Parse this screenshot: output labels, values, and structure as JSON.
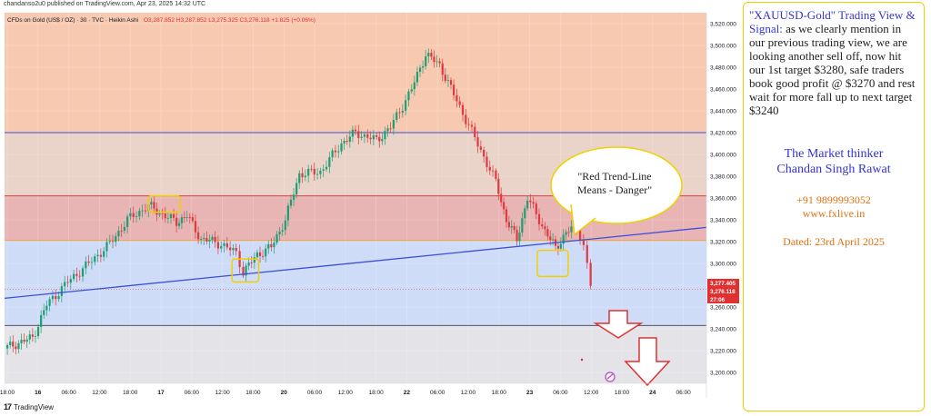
{
  "published_line": "chandanso2u0 published on TradingView.com, Apr 23, 2025 14:32 UTC",
  "footer_brand": "TradingView",
  "footer_logo": "tradingview-logo-icon",
  "chart_data": {
    "type": "candlestick",
    "legend": {
      "symbol": "CFDs on Gold (US$ / OZ) · 30 · TVC · Heikin Ashi",
      "ohlc": "O3,287.852  H3,287.852  L3,275.325  C3,276.118  +1.825 (+0.06%)"
    },
    "y_axis": {
      "ylim": [
        3190,
        3530
      ],
      "ticks": [
        3200,
        3220,
        3240,
        3260,
        3280,
        3300,
        3320,
        3340,
        3360,
        3380,
        3400,
        3420,
        3440,
        3460,
        3480,
        3500,
        3520
      ],
      "tick_labels": [
        "3,200.000",
        "3,220.000",
        "3,240.000",
        "3,260.000",
        "3,280.000",
        "3,300.000",
        "3,320.000",
        "3,340.000",
        "3,360.000",
        "3,380.000",
        "3,400.000",
        "3,420.000",
        "3,440.000",
        "3,460.000",
        "3,480.000",
        "3,500.000",
        "3,520.000"
      ]
    },
    "x_axis": {
      "labels": [
        "18:00",
        "16",
        "06:00",
        "12:00",
        "18:00",
        "17",
        "06:00",
        "12:00",
        "18:00",
        "20",
        "06:00",
        "12:00",
        "18:00",
        "22",
        "06:00",
        "12:00",
        "18:00",
        "23",
        "06:00",
        "12:00",
        "18:00",
        "24",
        "06:00"
      ],
      "bold_labels": [
        "16",
        "17",
        "20",
        "22",
        "23",
        "24"
      ]
    },
    "zones": [
      {
        "name": "top-zone",
        "from": 3420,
        "to": 3530,
        "color": "#f7c9b0"
      },
      {
        "name": "upper-mid-zone",
        "from": 3362,
        "to": 3420,
        "color": "#ead3c8"
      },
      {
        "name": "resistance-zone",
        "from": 3321,
        "to": 3362,
        "color": "#e8b4b4"
      },
      {
        "name": "support-zone",
        "from": 3243,
        "to": 3321,
        "color": "#cfdcf7"
      },
      {
        "name": "bottom-zone",
        "from": 3190,
        "to": 3243,
        "color": "#e4e4e8"
      }
    ],
    "hlines": [
      {
        "name": "blue-line-3420",
        "y": 3420,
        "color": "#3b4fd8"
      },
      {
        "name": "red-line-3362",
        "y": 3362,
        "color": "#e04040"
      },
      {
        "name": "orange-line-3321",
        "y": 3321,
        "color": "#f0a040"
      },
      {
        "name": "grey-line-3243",
        "y": 3243,
        "color": "#555566"
      }
    ],
    "trend_line": {
      "x0": 0.0,
      "y0": 3268,
      "x1": 1.0,
      "y1": 3333,
      "color": "#3b4fd8"
    },
    "price_labels": [
      {
        "value": "3,277.405",
        "y": 3277.4,
        "color": "#e03030"
      },
      {
        "value": "3,276.118",
        "y": 3276.1,
        "color": "#e03030"
      },
      {
        "value": "27:06",
        "y": 3269.5,
        "color": "#e03030"
      }
    ],
    "callout_text": "\"Red Trend-Line Means - Danger\"",
    "annotation_boxes": [
      {
        "x0": 0.205,
        "x1": 0.25,
        "y0": 3347,
        "y1": 3362
      },
      {
        "x0": 0.324,
        "x1": 0.362,
        "y0": 3283,
        "y1": 3304
      },
      {
        "x0": 0.759,
        "x1": 0.803,
        "y0": 3288,
        "y1": 3312
      }
    ],
    "path_points": [
      [
        0.0,
        3222
      ],
      [
        0.04,
        3232
      ],
      [
        0.06,
        3262
      ],
      [
        0.09,
        3283
      ],
      [
        0.12,
        3300
      ],
      [
        0.15,
        3318
      ],
      [
        0.175,
        3340
      ],
      [
        0.205,
        3353
      ],
      [
        0.225,
        3345
      ],
      [
        0.245,
        3338
      ],
      [
        0.26,
        3344
      ],
      [
        0.28,
        3322
      ],
      [
        0.3,
        3320
      ],
      [
        0.33,
        3310
      ],
      [
        0.34,
        3292
      ],
      [
        0.36,
        3308
      ],
      [
        0.38,
        3315
      ],
      [
        0.4,
        3340
      ],
      [
        0.42,
        3382
      ],
      [
        0.45,
        3384
      ],
      [
        0.48,
        3410
      ],
      [
        0.5,
        3420
      ],
      [
        0.53,
        3413
      ],
      [
        0.55,
        3425
      ],
      [
        0.58,
        3460
      ],
      [
        0.6,
        3492
      ],
      [
        0.62,
        3482
      ],
      [
        0.64,
        3455
      ],
      [
        0.67,
        3415
      ],
      [
        0.7,
        3375
      ],
      [
        0.715,
        3340
      ],
      [
        0.73,
        3322
      ],
      [
        0.745,
        3360
      ],
      [
        0.77,
        3330
      ],
      [
        0.785,
        3314
      ],
      [
        0.8,
        3328
      ],
      [
        0.815,
        3335
      ],
      [
        0.825,
        3316
      ],
      [
        0.835,
        3280
      ]
    ]
  },
  "panel": {
    "heading_highlight": "\"XAUUSD-Gold\" Trading View & Signal:",
    "heading_rest": " as we clearly mention in our previous trading view, we are looking another sell off, now hit our 1st target $3280, safe traders book good profit @ $3270 and rest wait for more fall up to next target $3240",
    "name_line1": "The Market thinker",
    "name_line2": "Chandan Singh Rawat",
    "phone": "+91 9899993052",
    "website": "www.fxlive.in",
    "dated": "Dated: 23rd April 2025"
  }
}
